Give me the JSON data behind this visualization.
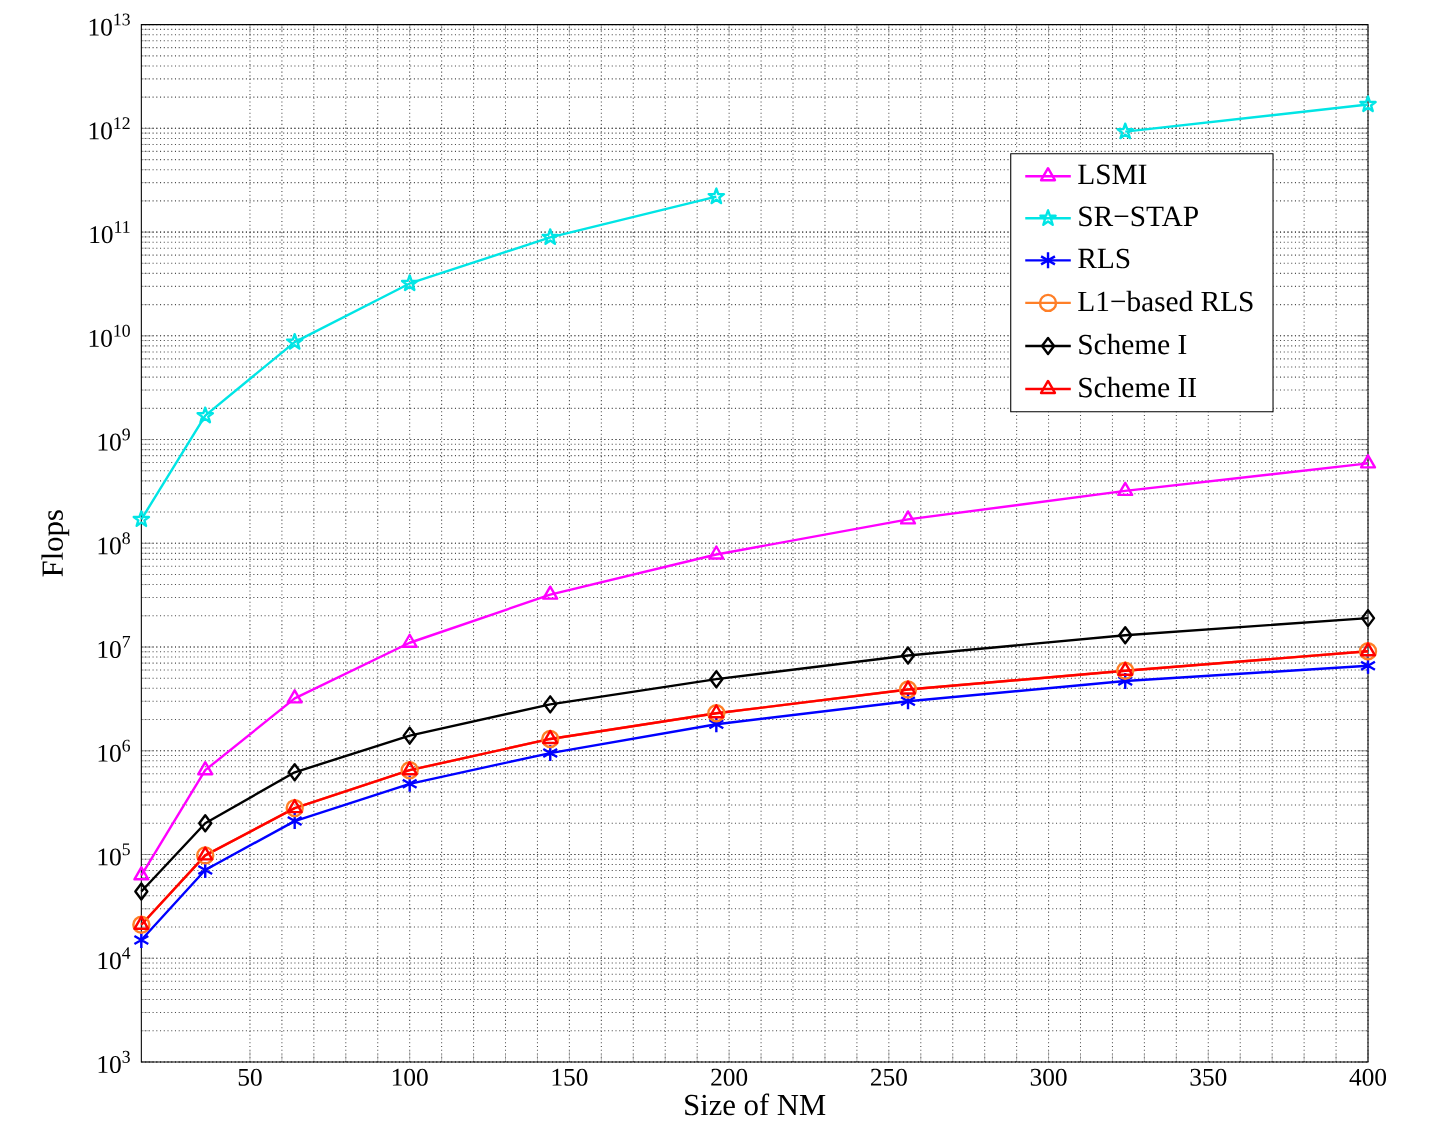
{
  "chart_data": {
    "type": "line",
    "xlabel": "Size of NM",
    "ylabel": "Flops",
    "x": [
      16,
      36,
      64,
      100,
      144,
      196,
      256,
      324,
      400
    ],
    "xlim": [
      16,
      400
    ],
    "xticks": [
      50,
      100,
      150,
      200,
      250,
      300,
      350,
      400
    ],
    "ylim": [
      1000,
      10000000000000
    ],
    "log": "y",
    "yticks": [
      {
        "value": 1000,
        "label": "10$^{3}$"
      },
      {
        "value": 10000,
        "label": "10$^{4}$"
      },
      {
        "value": 100000,
        "label": "10$^{5}$"
      },
      {
        "value": 1000000,
        "label": "10$^{6}$"
      },
      {
        "value": 10000000,
        "label": "10$^{7}$"
      },
      {
        "value": 100000000,
        "label": "10$^{8}$"
      },
      {
        "value": 1000000000,
        "label": "10$^{9}$"
      },
      {
        "value": 10000000000,
        "label": "10$^{10}$"
      },
      {
        "value": 100000000000,
        "label": "10$^{11}$"
      },
      {
        "value": 1000000000000,
        "label": "10$^{12}$"
      },
      {
        "value": 10000000000000,
        "label": "10$^{13}$"
      }
    ],
    "grid": true,
    "legend": "top right",
    "line_style": "solid",
    "series": [
      {
        "name": "LSMI",
        "color": "#ff00ff",
        "marker": "triangle",
        "values": [
          63000,
          650000,
          3200000,
          11000000,
          32000000,
          78000000,
          170000000,
          320000000,
          590000000
        ]
      },
      {
        "name": "SR−STAP",
        "color": "#00e5e5",
        "marker": "star",
        "values": [
          170000000,
          1700000000,
          8700000000,
          32000000000,
          89000000000,
          220000000000,
          null,
          930000000000,
          1700000000000
        ]
      },
      {
        "name": "RLS",
        "color": "#0000ff",
        "marker": "cross",
        "values": [
          15000,
          71000,
          210000,
          480000,
          950000,
          1800000,
          3000000,
          4700000,
          6600000
        ]
      },
      {
        "name": "L1−based RLS",
        "color": "#ff7f27",
        "marker": "circle",
        "values": [
          21000,
          98000,
          280000,
          650000,
          1300000,
          2300000,
          3900000,
          5900000,
          9100000
        ]
      },
      {
        "name": "Scheme I",
        "color": "#000000",
        "marker": "diamond",
        "values": [
          44000,
          200000,
          620000,
          1400000,
          2800000,
          4900000,
          8300000,
          13000000,
          19000000
        ]
      },
      {
        "name": "Scheme II",
        "color": "#ff0000",
        "marker": "triangle",
        "values": [
          21000,
          98000,
          280000,
          650000,
          1300000,
          2300000,
          3900000,
          5900000,
          9100000
        ]
      }
    ]
  }
}
